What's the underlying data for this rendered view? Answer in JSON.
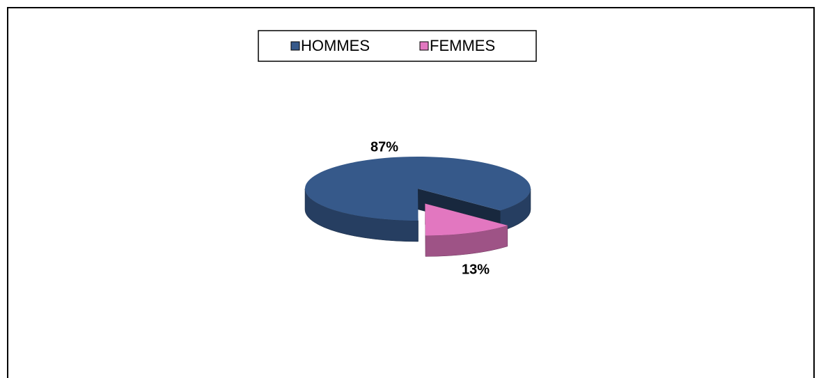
{
  "chart_data": {
    "type": "pie3d",
    "categories": [
      "HOMMES",
      "FEMMES"
    ],
    "values": [
      87,
      13
    ],
    "value_labels": [
      "87%",
      "13%"
    ],
    "colors": [
      "#36598a",
      "#e277c0"
    ],
    "legend": "top"
  }
}
